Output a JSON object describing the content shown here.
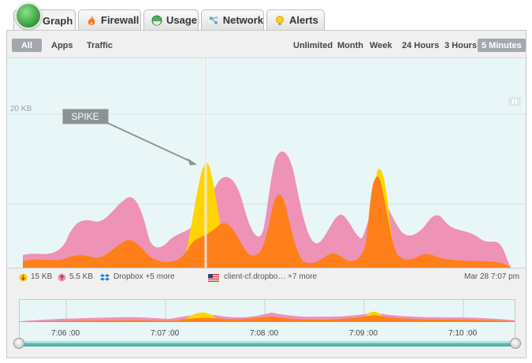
{
  "tabs": [
    {
      "label": "Graph",
      "icon": "graph-icon",
      "active": true
    },
    {
      "label": "Firewall",
      "icon": "flame-icon"
    },
    {
      "label": "Usage",
      "icon": "usage-icon"
    },
    {
      "label": "Network",
      "icon": "network-icon"
    },
    {
      "label": "Alerts",
      "icon": "bell-icon"
    }
  ],
  "filters_left": [
    "All",
    "Apps",
    "Traffic"
  ],
  "filters_left_selected": "All",
  "filters_right": [
    "Unlimited",
    "Month",
    "Week",
    "24 Hours",
    "3 Hours",
    "5 Minutes"
  ],
  "filters_right_selected": "5 Minutes",
  "chart": {
    "scale_label": "20 KB",
    "annotation": "SPIKE",
    "colors": {
      "download": "#ff7f1a",
      "upload": "#ee92b6",
      "spike": "#ffd400",
      "background": "#e9f6f8"
    }
  },
  "legend": {
    "download": "15 KB",
    "upload": "5.5 KB",
    "app": "Dropbox +5 more",
    "host": "client-cf.dropbo…  +7 more",
    "timestamp": "Mar 28 7:07 pm"
  },
  "timeline": {
    "labels": [
      "7:06 :00",
      "7:07 :00",
      "7:08 :00",
      "7:09 :00",
      "7:10 :00"
    ],
    "accent": "#3fb4b0"
  }
}
